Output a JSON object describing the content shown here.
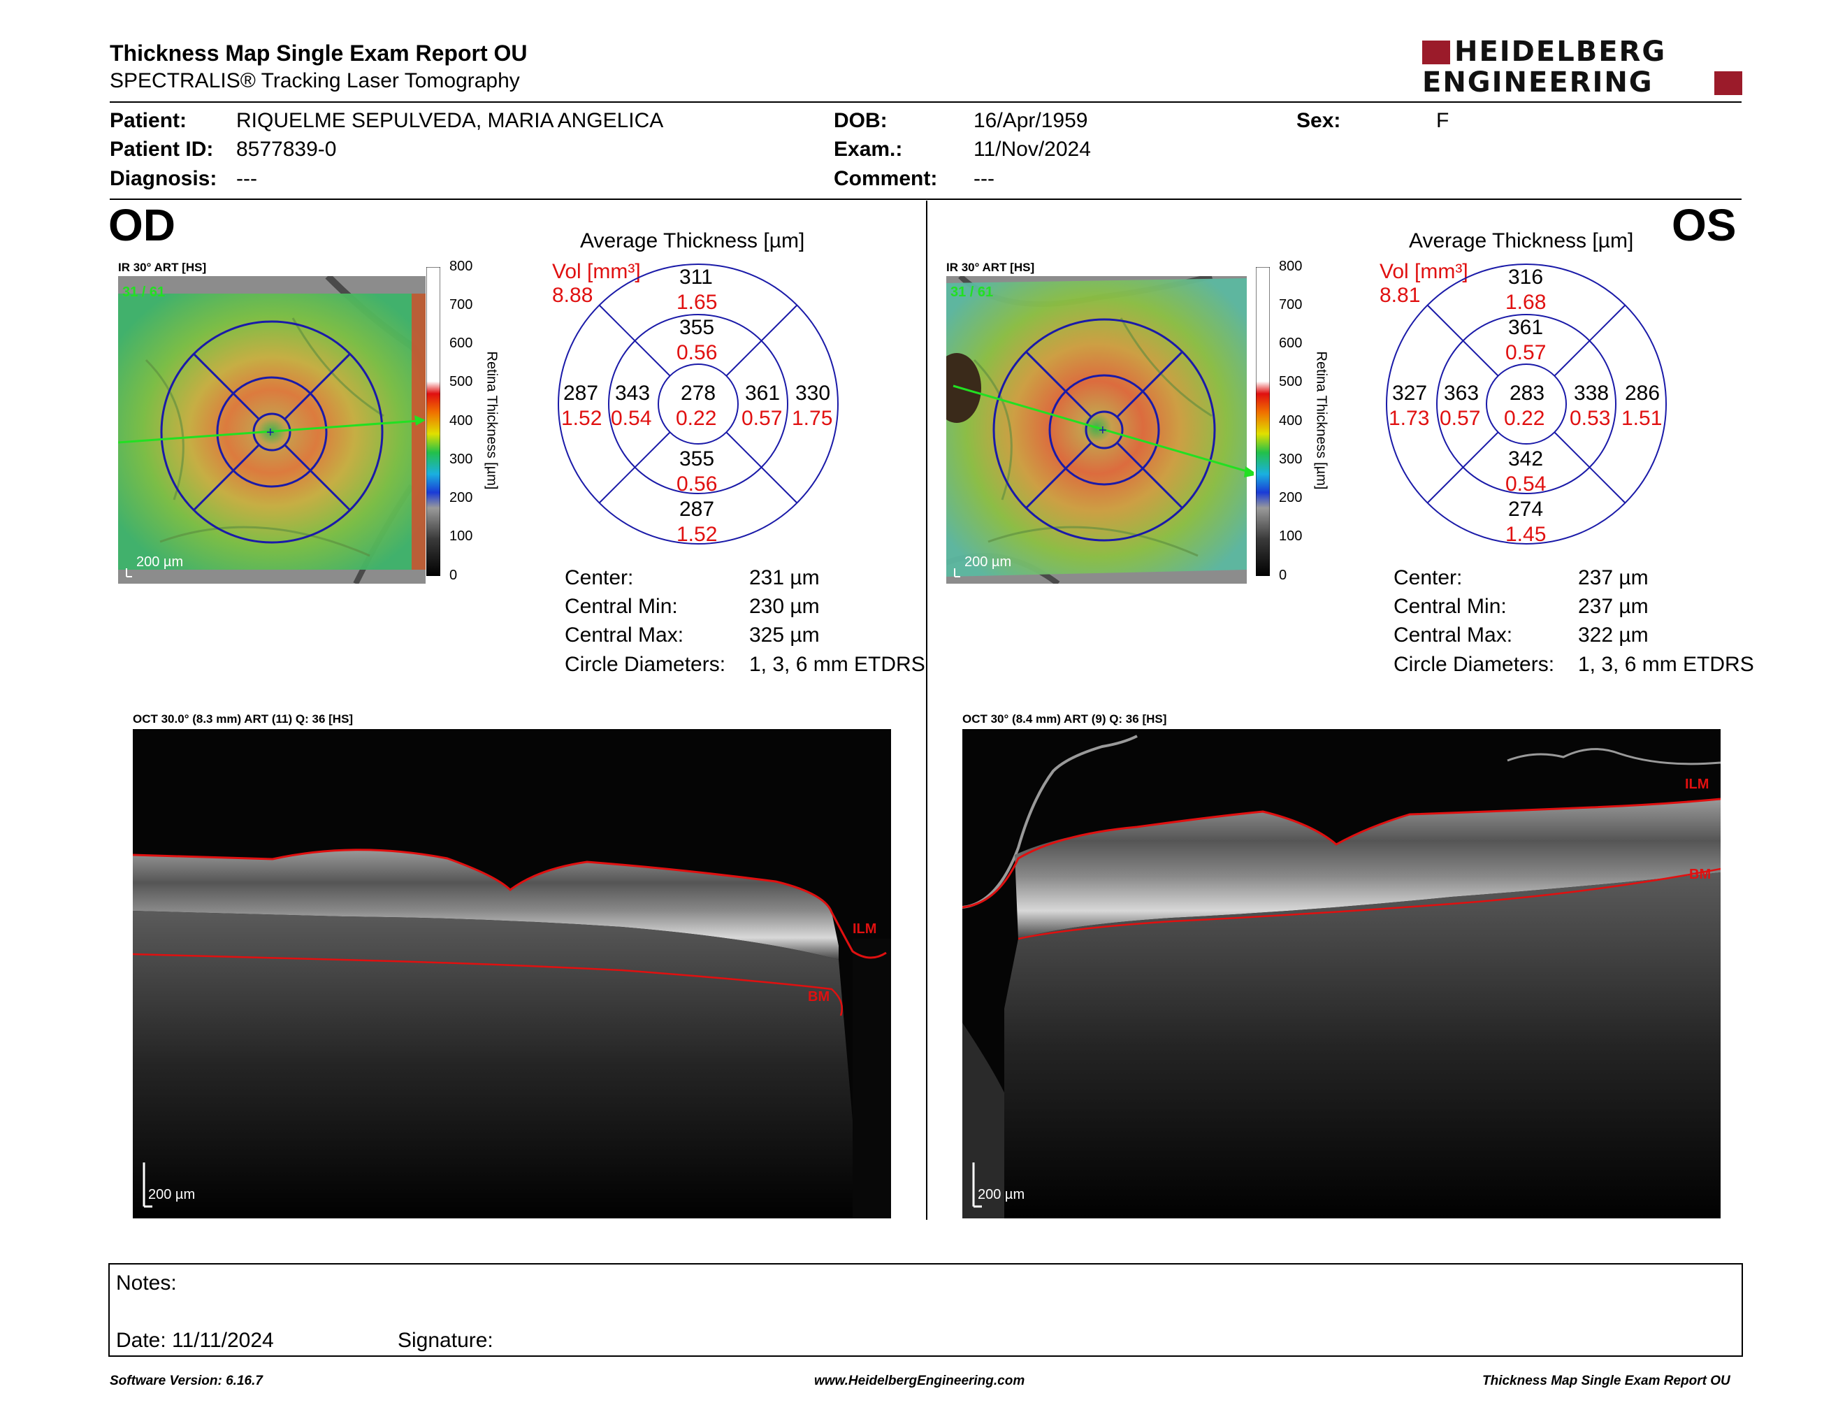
{
  "header": {
    "title": "Thickness Map Single Exam Report OU",
    "subtitle": "SPECTRALIS® Tracking Laser Tomography",
    "logo_line1": "HEIDELBERG",
    "logo_line2": "ENGINEERING"
  },
  "patient": {
    "patient_label": "Patient:",
    "patient_value": "RIQUELME SEPULVEDA, MARIA ANGELICA",
    "id_label": "Patient ID:",
    "id_value": "8577839-0",
    "diagnosis_label": "Diagnosis:",
    "diagnosis_value": "---",
    "dob_label": "DOB:",
    "dob_value": "16/Apr/1959",
    "exam_label": "Exam.:",
    "exam_value": "11/Nov/2024",
    "comment_label": "Comment:",
    "comment_value": "---",
    "sex_label": "Sex:",
    "sex_value": "F"
  },
  "od": {
    "eye": "OD",
    "ir_label": "IR 30° ART [HS]",
    "frames": "31 / 61",
    "scale_label": "200 µm",
    "avg_title": "Average Thickness [µm]",
    "vol_label": "Vol [mm³]",
    "vol_value": "8.88",
    "etdrs": {
      "outer_sup": {
        "t": "311",
        "v": "1.65"
      },
      "inner_sup": {
        "t": "355",
        "v": "0.56"
      },
      "outer_temp": {
        "t": "287",
        "v": "1.52"
      },
      "inner_temp": {
        "t": "343",
        "v": "0.54"
      },
      "center": {
        "t": "278",
        "v": "0.22"
      },
      "inner_nas": {
        "t": "361",
        "v": "0.57"
      },
      "outer_nas": {
        "t": "330",
        "v": "1.75"
      },
      "inner_inf": {
        "t": "355",
        "v": "0.56"
      },
      "outer_inf": {
        "t": "287",
        "v": "1.52"
      }
    },
    "stats": {
      "center_label": "Center:",
      "center_value": "231 µm",
      "min_label": "Central Min:",
      "min_value": "230 µm",
      "max_label": "Central Max:",
      "max_value": "325 µm",
      "diam_label": "Circle Diameters:",
      "diam_value": "1, 3, 6 mm ETDRS"
    },
    "oct_label": "OCT 30.0° (8.3 mm) ART (11) Q: 36 [HS]",
    "oct_scale": "200 µm",
    "ilm": "ILM",
    "bm": "BM"
  },
  "os": {
    "eye": "OS",
    "ir_label": "IR 30° ART [HS]",
    "frames": "31 / 61",
    "scale_label": "200 µm",
    "avg_title": "Average Thickness [µm]",
    "vol_label": "Vol [mm³]",
    "vol_value": "8.81",
    "etdrs": {
      "outer_sup": {
        "t": "316",
        "v": "1.68"
      },
      "inner_sup": {
        "t": "361",
        "v": "0.57"
      },
      "outer_temp": {
        "t": "327",
        "v": "1.73"
      },
      "inner_temp": {
        "t": "363",
        "v": "0.57"
      },
      "center": {
        "t": "283",
        "v": "0.22"
      },
      "inner_nas": {
        "t": "338",
        "v": "0.53"
      },
      "outer_nas": {
        "t": "286",
        "v": "1.51"
      },
      "inner_inf": {
        "t": "342",
        "v": "0.54"
      },
      "outer_inf": {
        "t": "274",
        "v": "1.45"
      }
    },
    "stats": {
      "center_label": "Center:",
      "center_value": "237 µm",
      "min_label": "Central Min:",
      "min_value": "237 µm",
      "max_label": "Central Max:",
      "max_value": "322 µm",
      "diam_label": "Circle Diameters:",
      "diam_value": "1, 3, 6 mm ETDRS"
    },
    "oct_label": "OCT 30° (8.4 mm) ART (9) Q: 36 [HS]",
    "oct_scale": "200 µm",
    "ilm": "ILM",
    "bm": "BM"
  },
  "colorbar": {
    "ticks": [
      "800",
      "700",
      "600",
      "500",
      "400",
      "300",
      "200",
      "100",
      "0"
    ],
    "title": "Retina Thickness [µm]"
  },
  "notes": {
    "notes_label": "Notes:",
    "date_label": "Date: 11/11/2024",
    "signature_label": "Signature:"
  },
  "footer": {
    "left": "Software Version: 6.16.7",
    "center": "www.HeidelbergEngineering.com",
    "right": "Thickness Map Single Exam Report OU"
  },
  "colors": {
    "accent_red": "#e01010",
    "logo_red": "#9b1b2a",
    "grid_blue": "#1a1aa8"
  }
}
